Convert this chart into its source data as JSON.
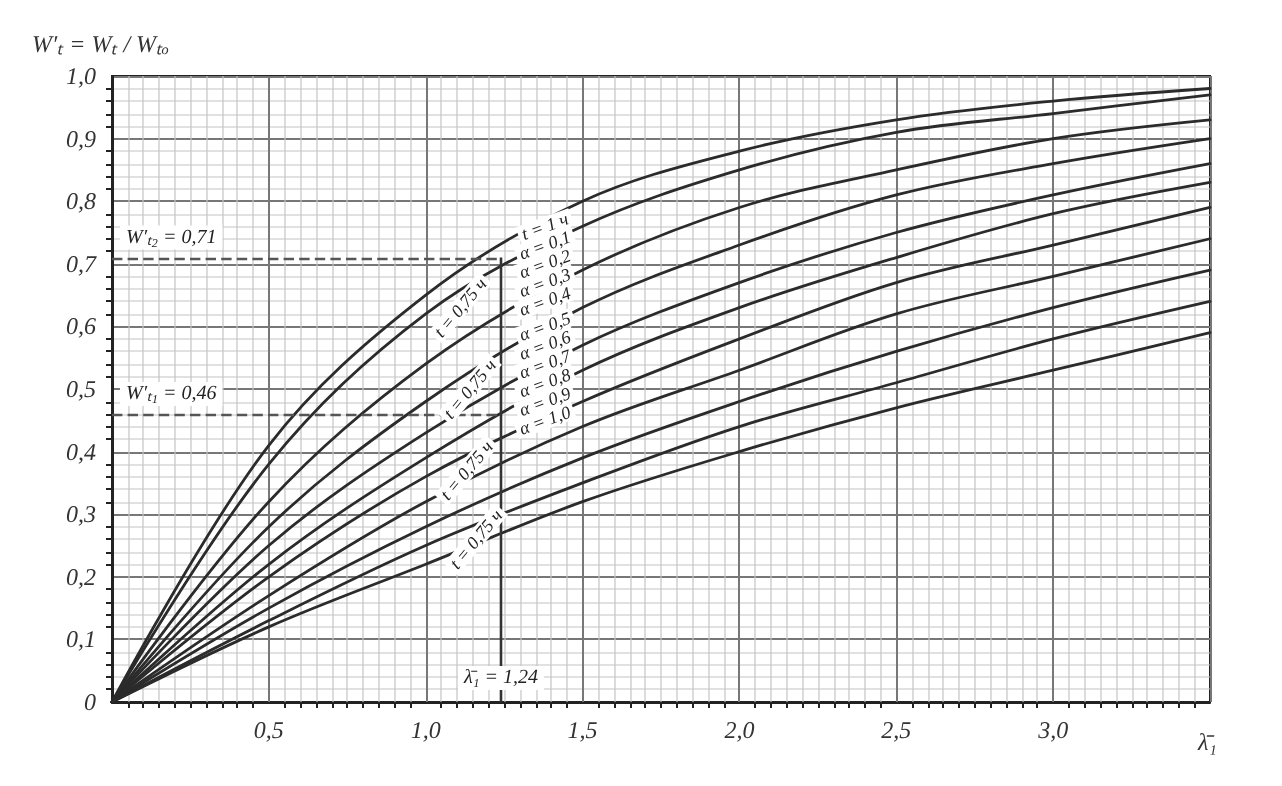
{
  "chart_data": {
    "type": "line",
    "ylabel": "W′ₜ = Wₜ / Wₜₒ",
    "xlabel": "λ̄₁",
    "x": [
      0,
      0.5,
      1,
      1.5,
      2,
      2.5,
      3,
      3.5
    ],
    "series": [
      {
        "color": "#2b2b2b",
        "values": [
          0,
          0.41,
          0.65,
          0.8,
          0.88,
          0.93,
          0.96,
          0.98
        ]
      },
      {
        "color": "#2b2b2b",
        "values": [
          0,
          0.38,
          0.62,
          0.76,
          0.85,
          0.91,
          0.94,
          0.97
        ]
      },
      {
        "color": "#2b2b2b",
        "values": [
          0,
          0.32,
          0.54,
          0.69,
          0.79,
          0.85,
          0.9,
          0.93
        ]
      },
      {
        "color": "#2b2b2b",
        "values": [
          0,
          0.28,
          0.48,
          0.63,
          0.73,
          0.81,
          0.86,
          0.9
        ]
      },
      {
        "color": "#2b2b2b",
        "values": [
          0,
          0.25,
          0.43,
          0.57,
          0.67,
          0.75,
          0.81,
          0.86
        ]
      },
      {
        "color": "#2b2b2b",
        "values": [
          0,
          0.22,
          0.39,
          0.53,
          0.63,
          0.71,
          0.78,
          0.83
        ]
      },
      {
        "color": "#2b2b2b",
        "values": [
          0,
          0.2,
          0.36,
          0.48,
          0.58,
          0.67,
          0.73,
          0.79
        ]
      },
      {
        "color": "#2b2b2b",
        "values": [
          0,
          0.17,
          0.32,
          0.44,
          0.53,
          0.62,
          0.68,
          0.74
        ]
      },
      {
        "color": "#2b2b2b",
        "values": [
          0,
          0.15,
          0.28,
          0.39,
          0.48,
          0.56,
          0.63,
          0.69
        ]
      },
      {
        "color": "#2b2b2b",
        "values": [
          0,
          0.13,
          0.25,
          0.35,
          0.44,
          0.51,
          0.58,
          0.64
        ]
      },
      {
        "color": "#2b2b2b",
        "values": [
          0,
          0.12,
          0.22,
          0.32,
          0.4,
          0.47,
          0.53,
          0.59
        ]
      }
    ],
    "xlim": [
      0,
      3.5
    ],
    "ylim": [
      0,
      1
    ],
    "xticks": [
      {
        "value": 0.5,
        "label": "0,5"
      },
      {
        "value": 1,
        "label": "1,0"
      },
      {
        "value": 1.5,
        "label": "1,5"
      },
      {
        "value": 2,
        "label": "2,0"
      },
      {
        "value": 2.5,
        "label": "2,5"
      },
      {
        "value": 3,
        "label": "3,0"
      }
    ],
    "yticks": [
      0,
      {
        "value": 0.1,
        "label": "0,1"
      },
      {
        "value": 0.2,
        "label": "0,2"
      },
      {
        "value": 0.3,
        "label": "0,3"
      },
      {
        "value": 0.4,
        "label": "0,4"
      },
      {
        "value": 0.5,
        "label": "0,5"
      },
      {
        "value": 0.6,
        "label": "0,6"
      },
      {
        "value": 0.7,
        "label": "0,7"
      },
      {
        "value": 0.8,
        "label": "0,8"
      },
      {
        "value": 0.9,
        "label": "0,9"
      },
      {
        "value": 1,
        "label": "1,0"
      }
    ],
    "grid": true,
    "marker": "none",
    "line_style": "solid",
    "ref_lines": [
      {
        "axis": "y",
        "value": 0.71,
        "label": "W′ₜ₂ = 0,71",
        "line_style": "dashed",
        "color": "#555555"
      },
      {
        "axis": "y",
        "value": 0.46,
        "label": "W′ₜ₁ = 0,46",
        "line_style": "dashed",
        "color": "#555555"
      },
      {
        "axis": "x",
        "value": 1.24,
        "label": "λ̄₁ = 1,24",
        "line_style": "solid",
        "color": "#333333"
      }
    ],
    "annotations": [
      {
        "text": "t = 1 ч",
        "x": 1.38,
        "y": 0.76
      },
      {
        "text": "α = 0,1",
        "x": 1.38,
        "y": 0.73
      },
      {
        "text": "α = 0,2",
        "x": 1.38,
        "y": 0.7
      },
      {
        "text": "α = 0,3",
        "x": 1.38,
        "y": 0.67
      },
      {
        "text": "α = 0,4",
        "x": 1.38,
        "y": 0.64
      },
      {
        "text": "α = 0,5",
        "x": 1.38,
        "y": 0.6
      },
      {
        "text": "α = 0,6",
        "x": 1.38,
        "y": 0.57
      },
      {
        "text": "α = 0,7",
        "x": 1.38,
        "y": 0.54
      },
      {
        "text": "α = 0,8",
        "x": 1.38,
        "y": 0.51
      },
      {
        "text": "α = 0,9",
        "x": 1.38,
        "y": 0.48
      },
      {
        "text": "α = 1,0",
        "x": 1.38,
        "y": 0.45
      },
      {
        "text": "t = 0,75 ч",
        "x": 1.11,
        "y": 0.63
      },
      {
        "text": "t = 0,75 ч",
        "x": 1.14,
        "y": 0.5
      },
      {
        "text": "t = 0,75 ч",
        "x": 1.13,
        "y": 0.37
      },
      {
        "text": "t = 0,75 ч",
        "x": 1.16,
        "y": 0.26
      }
    ]
  }
}
